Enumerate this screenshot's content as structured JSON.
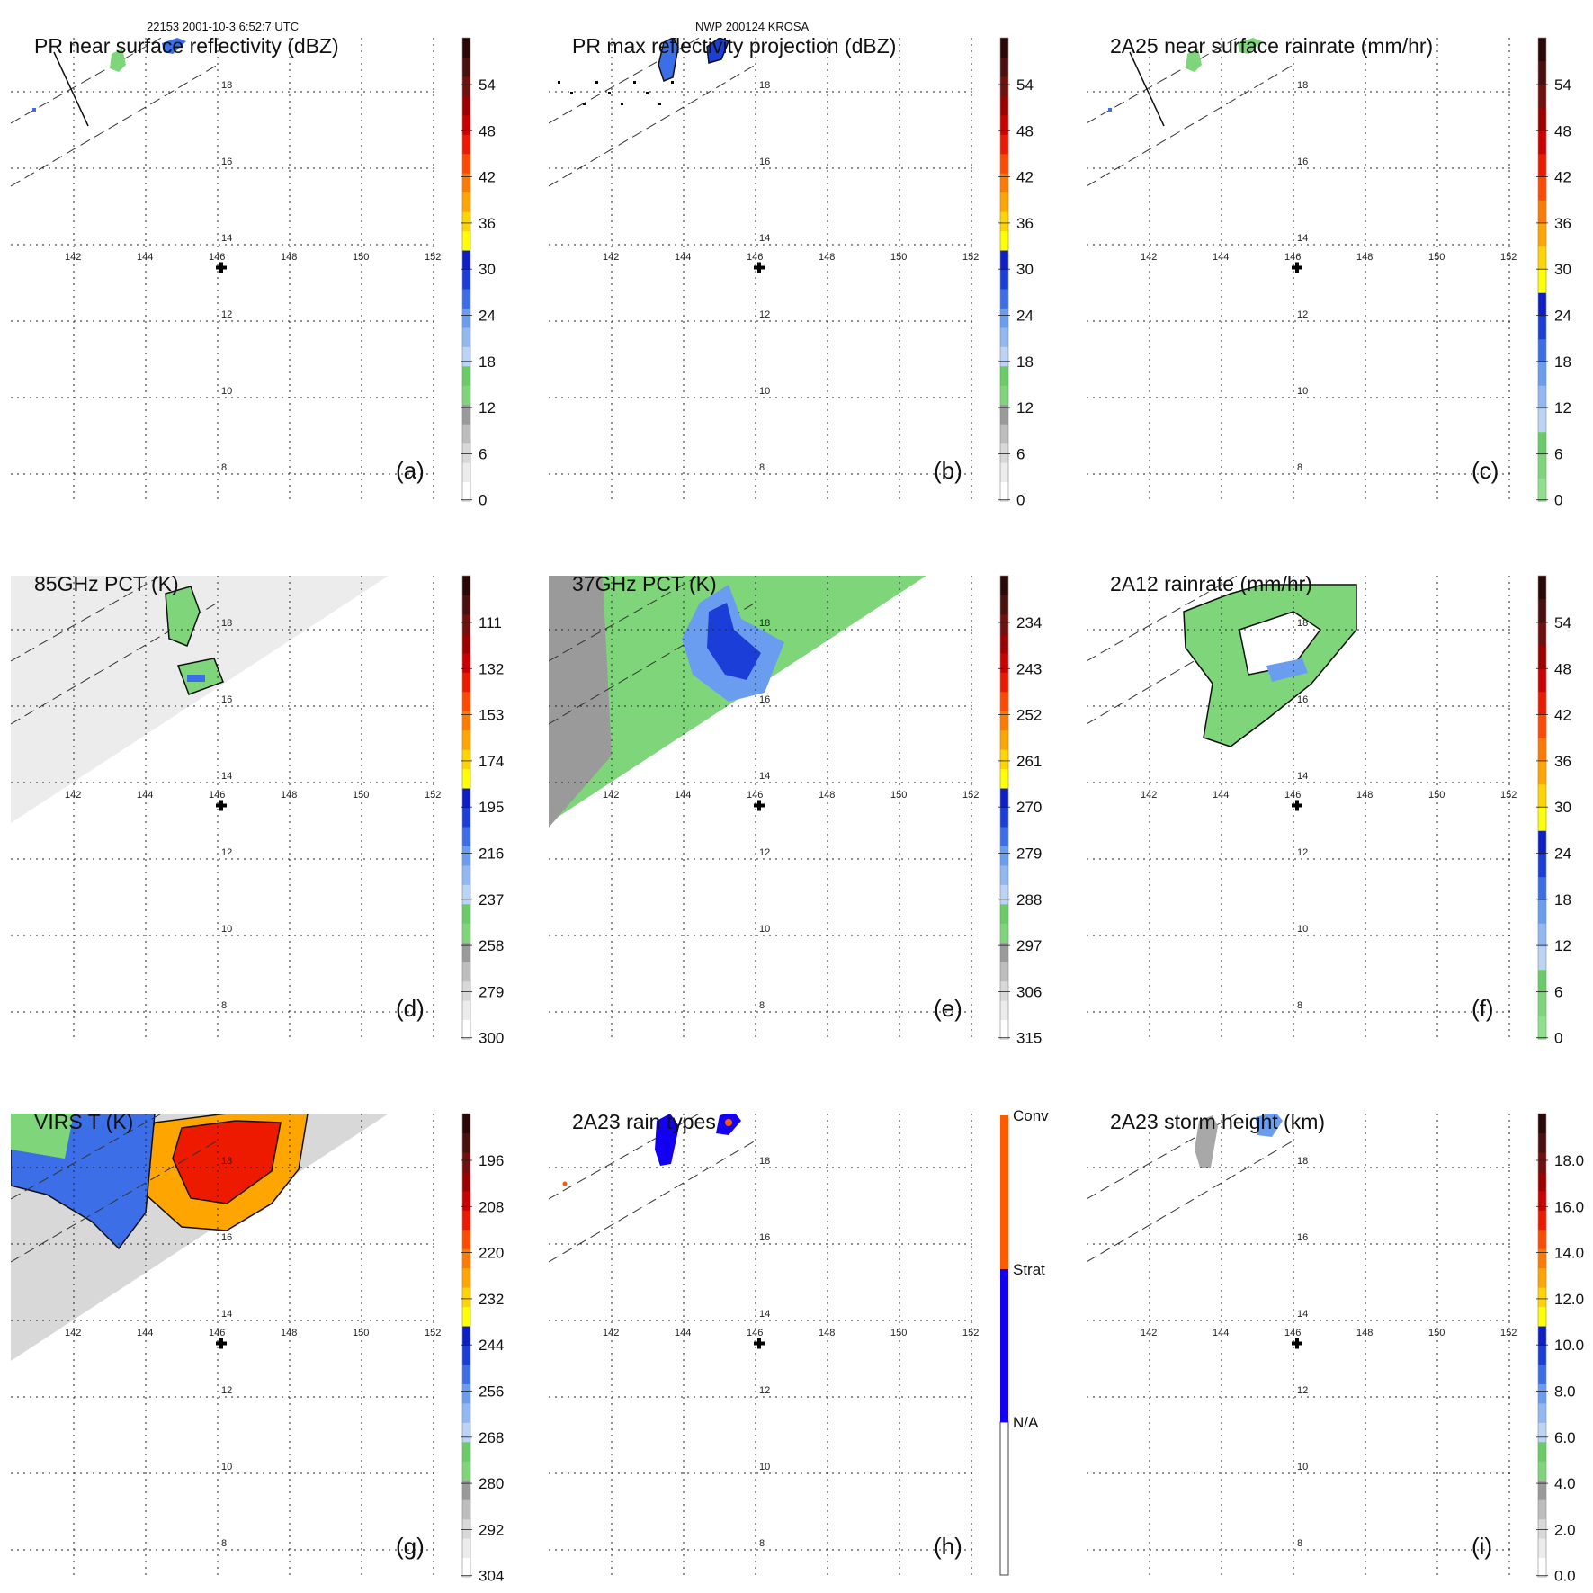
{
  "header": {
    "orbit_time": "22153 2001-10-3 6:52:7 UTC",
    "storm_name": "NWP 200124 KROSA"
  },
  "chart_data": [
    {
      "type": "heatmap",
      "id": "a",
      "title": "PR near surface reflectivity (dBZ)",
      "panel_label": "(a)",
      "lon_ticks": [
        "142",
        "144",
        "146",
        "148",
        "150",
        "152"
      ],
      "lat_ticks": [
        "18",
        "16",
        "14",
        "12",
        "10",
        "8"
      ],
      "colorbar": {
        "ticks": [
          "54",
          "48",
          "42",
          "36",
          "30",
          "24",
          "18",
          "12",
          "6",
          "0"
        ],
        "min": 0,
        "max": 60,
        "units": "dBZ"
      },
      "storm_center": {
        "lon": 146.1,
        "lat": 13.4
      },
      "swath": "pr"
    },
    {
      "type": "heatmap",
      "id": "b",
      "title": "PR max reflectivity projection (dBZ)",
      "panel_label": "(b)",
      "lon_ticks": [
        "142",
        "144",
        "146",
        "148",
        "150",
        "152"
      ],
      "lat_ticks": [
        "18",
        "16",
        "14",
        "12",
        "10",
        "8"
      ],
      "colorbar": {
        "ticks": [
          "54",
          "48",
          "42",
          "36",
          "30",
          "24",
          "18",
          "12",
          "6",
          "0"
        ],
        "min": 0,
        "max": 60,
        "units": "dBZ"
      },
      "storm_center": {
        "lon": 146.1,
        "lat": 13.4
      },
      "swath": "pr"
    },
    {
      "type": "heatmap",
      "id": "c",
      "title": "2A25 near surface rainrate (mm/hr)",
      "panel_label": "(c)",
      "lon_ticks": [
        "142",
        "144",
        "146",
        "148",
        "150",
        "152"
      ],
      "lat_ticks": [
        "18",
        "16",
        "14",
        "12",
        "10",
        "8"
      ],
      "colorbar": {
        "ticks": [
          "54",
          "48",
          "42",
          "36",
          "30",
          "24",
          "18",
          "12",
          "6",
          "0"
        ],
        "min": 0,
        "max": 60,
        "units": "mm/hr"
      },
      "storm_center": {
        "lon": 146.1,
        "lat": 13.4
      },
      "swath": "pr"
    },
    {
      "type": "heatmap",
      "id": "d",
      "title": "85GHz PCT (K)",
      "panel_label": "(d)",
      "lon_ticks": [
        "142",
        "144",
        "146",
        "148",
        "150",
        "152"
      ],
      "lat_ticks": [
        "18",
        "16",
        "14",
        "12",
        "10",
        "8"
      ],
      "colorbar": {
        "ticks": [
          "111",
          "132",
          "153",
          "174",
          "195",
          "216",
          "237",
          "258",
          "279",
          "300"
        ],
        "min": 90,
        "max": 300,
        "units": "K"
      },
      "storm_center": {
        "lon": 146.1,
        "lat": 13.4
      },
      "swath": "tmi"
    },
    {
      "type": "heatmap",
      "id": "e",
      "title": "37GHz PCT (K)",
      "panel_label": "(e)",
      "lon_ticks": [
        "142",
        "144",
        "146",
        "148",
        "150",
        "152"
      ],
      "lat_ticks": [
        "18",
        "16",
        "14",
        "12",
        "10",
        "8"
      ],
      "colorbar": {
        "ticks": [
          "234",
          "243",
          "252",
          "261",
          "270",
          "279",
          "288",
          "297",
          "306",
          "315"
        ],
        "min": 225,
        "max": 315,
        "units": "K"
      },
      "storm_center": {
        "lon": 146.1,
        "lat": 13.4
      },
      "swath": "tmi"
    },
    {
      "type": "heatmap",
      "id": "f",
      "title": "2A12 rainrate (mm/hr)",
      "panel_label": "(f)",
      "lon_ticks": [
        "142",
        "144",
        "146",
        "148",
        "150",
        "152"
      ],
      "lat_ticks": [
        "18",
        "16",
        "14",
        "12",
        "10",
        "8"
      ],
      "colorbar": {
        "ticks": [
          "54",
          "48",
          "42",
          "36",
          "30",
          "24",
          "18",
          "12",
          "6",
          "0"
        ],
        "min": 0,
        "max": 60,
        "units": "mm/hr"
      },
      "storm_center": {
        "lon": 146.1,
        "lat": 13.4
      },
      "swath": "tmi"
    },
    {
      "type": "heatmap",
      "id": "g",
      "title": "VIRS T (K)",
      "panel_label": "(g)",
      "lon_ticks": [
        "142",
        "144",
        "146",
        "148",
        "150",
        "152"
      ],
      "lat_ticks": [
        "18",
        "16",
        "14",
        "12",
        "10",
        "8"
      ],
      "colorbar": {
        "ticks": [
          "196",
          "208",
          "220",
          "232",
          "244",
          "256",
          "268",
          "280",
          "292",
          "304"
        ],
        "min": 184,
        "max": 304,
        "units": "K"
      },
      "storm_center": {
        "lon": 146.1,
        "lat": 13.4
      },
      "swath": "virs"
    },
    {
      "type": "heatmap",
      "id": "h",
      "title": "2A23 rain types",
      "panel_label": "(h)",
      "lon_ticks": [
        "142",
        "144",
        "146",
        "148",
        "150",
        "152"
      ],
      "lat_ticks": [
        "18",
        "16",
        "14",
        "12",
        "10",
        "8"
      ],
      "colorbar": {
        "ticks": [
          "Conv",
          "Strat",
          "N/A"
        ],
        "categorical": true
      },
      "storm_center": {
        "lon": 146.1,
        "lat": 13.4
      },
      "swath": "pr"
    },
    {
      "type": "heatmap",
      "id": "i",
      "title": "2A23 storm height (km)",
      "panel_label": "(i)",
      "lon_ticks": [
        "142",
        "144",
        "146",
        "148",
        "150",
        "152"
      ],
      "lat_ticks": [
        "18",
        "16",
        "14",
        "12",
        "10",
        "8"
      ],
      "colorbar": {
        "ticks": [
          "18.0",
          "16.0",
          "14.0",
          "12.0",
          "10.0",
          "8.0",
          "6.0",
          "4.0",
          "2.0",
          "0.0"
        ],
        "min": 0,
        "max": 20,
        "units": "km"
      },
      "storm_center": {
        "lon": 146.1,
        "lat": 13.4
      },
      "swath": "pr"
    }
  ]
}
